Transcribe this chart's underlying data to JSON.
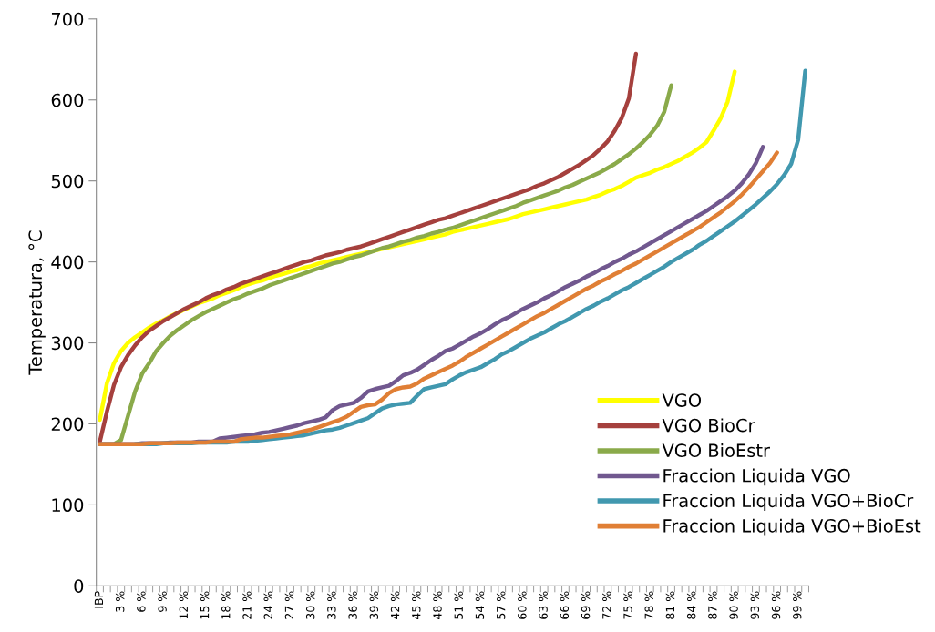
{
  "chart_data": {
    "type": "line",
    "ylabel": "Temperatura, °C",
    "ylim": [
      0,
      700
    ],
    "yticks": [
      0,
      100,
      200,
      300,
      400,
      500,
      600,
      700
    ],
    "grid": false,
    "legend": "bottom right",
    "marker": "none",
    "line_style": "solid",
    "categories": [
      "IBP",
      null,
      null,
      "3 %",
      null,
      null,
      "6 %",
      null,
      null,
      "9 %",
      null,
      null,
      "12 %",
      null,
      null,
      "15 %",
      null,
      null,
      "18 %",
      null,
      null,
      "21 %",
      null,
      null,
      "24 %",
      null,
      null,
      "27 %",
      null,
      null,
      "30 %",
      null,
      null,
      "33 %",
      null,
      null,
      "36 %",
      null,
      null,
      "39 %",
      null,
      null,
      "42 %",
      null,
      null,
      "45 %",
      null,
      null,
      "48 %",
      null,
      null,
      "51 %",
      null,
      null,
      "54 %",
      null,
      null,
      "57 %",
      null,
      null,
      "60 %",
      null,
      null,
      "63 %",
      null,
      null,
      "66 %",
      null,
      null,
      "69 %",
      null,
      null,
      "72 %",
      null,
      null,
      "75 %",
      null,
      null,
      "78 %",
      null,
      null,
      "81 %",
      null,
      null,
      "84 %",
      null,
      null,
      "87 %",
      null,
      null,
      "90 %",
      null,
      null,
      "93 %",
      null,
      null,
      "96 %",
      null,
      null,
      "99 %",
      null
    ],
    "series": [
      {
        "name": "VGO",
        "color": "#ffff00",
        "values": [
          205,
          250,
          275,
          290,
          300,
          307,
          313,
          319,
          324,
          328,
          333,
          337,
          341,
          345,
          349,
          352,
          355,
          359,
          362,
          365,
          369,
          372,
          375,
          377,
          380,
          383,
          385,
          388,
          390,
          393,
          395,
          398,
          400,
          402,
          404,
          406,
          408,
          410,
          412,
          414,
          416,
          418,
          420,
          422,
          424,
          426,
          428,
          430,
          432,
          434,
          437,
          439,
          441,
          443,
          445,
          447,
          449,
          451,
          453,
          456,
          459,
          461,
          463,
          465,
          467,
          469,
          471,
          473,
          475,
          477,
          480,
          483,
          487,
          490,
          494,
          499,
          504,
          507,
          510,
          514,
          517,
          521,
          525,
          530,
          535,
          541,
          548,
          562,
          577,
          598,
          635,
          null,
          null,
          null,
          null,
          null,
          null,
          null,
          null,
          null,
          null
        ]
      },
      {
        "name": "VGO BioCr",
        "color": "#a5403d",
        "values": [
          178,
          215,
          248,
          270,
          285,
          297,
          307,
          315,
          321,
          327,
          332,
          337,
          342,
          346,
          350,
          355,
          359,
          362,
          366,
          369,
          373,
          376,
          379,
          382,
          385,
          388,
          391,
          394,
          397,
          400,
          402,
          405,
          408,
          410,
          412,
          415,
          417,
          419,
          422,
          425,
          428,
          431,
          434,
          437,
          440,
          443,
          446,
          449,
          452,
          454,
          457,
          460,
          463,
          466,
          469,
          472,
          475,
          478,
          481,
          484,
          487,
          490,
          494,
          497,
          501,
          505,
          510,
          515,
          520,
          526,
          532,
          540,
          549,
          562,
          578,
          602,
          657,
          null,
          null,
          null,
          null,
          null,
          null,
          null,
          null,
          null,
          null,
          null,
          null,
          null,
          null,
          null,
          null,
          null,
          null,
          null,
          null,
          null,
          null,
          null,
          null
        ]
      },
      {
        "name": "VGO BioEstr",
        "color": "#8aaa4a",
        "values": [
          175,
          175,
          175,
          180,
          210,
          240,
          262,
          275,
          290,
          300,
          309,
          316,
          322,
          328,
          333,
          338,
          342,
          346,
          350,
          354,
          357,
          361,
          364,
          367,
          371,
          374,
          377,
          380,
          383,
          386,
          389,
          392,
          395,
          398,
          400,
          403,
          406,
          408,
          411,
          414,
          417,
          419,
          422,
          425,
          427,
          430,
          432,
          435,
          437,
          440,
          442,
          445,
          448,
          451,
          454,
          457,
          460,
          463,
          466,
          469,
          473,
          476,
          479,
          482,
          485,
          488,
          492,
          495,
          499,
          503,
          507,
          511,
          516,
          521,
          527,
          533,
          540,
          548,
          557,
          568,
          585,
          618,
          null,
          null,
          null,
          null,
          null,
          null,
          null,
          null,
          null,
          null,
          null,
          null,
          null,
          null,
          null,
          null,
          null,
          null,
          null
        ]
      },
      {
        "name": "Fraccion Liquida VGO",
        "color": "#71588f",
        "values": [
          175,
          175,
          175,
          175,
          175,
          175,
          176,
          176,
          176,
          176,
          177,
          177,
          177,
          177,
          178,
          178,
          178,
          182,
          183,
          184,
          185,
          186,
          187,
          189,
          190,
          192,
          194,
          196,
          198,
          201,
          203,
          205,
          208,
          217,
          222,
          224,
          226,
          232,
          240,
          243,
          245,
          247,
          253,
          260,
          263,
          267,
          273,
          279,
          284,
          290,
          293,
          298,
          303,
          308,
          312,
          317,
          323,
          328,
          332,
          337,
          342,
          346,
          350,
          355,
          359,
          364,
          369,
          373,
          377,
          382,
          386,
          391,
          395,
          400,
          404,
          409,
          413,
          418,
          423,
          428,
          433,
          438,
          443,
          448,
          453,
          458,
          463,
          469,
          475,
          481,
          488,
          497,
          508,
          522,
          542,
          null,
          null,
          null,
          null,
          null,
          null
        ]
      },
      {
        "name": "Fraccion Liquida VGO+BioCr",
        "color": "#4198af",
        "values": [
          null,
          null,
          null,
          null,
          null,
          175,
          175,
          175,
          175,
          176,
          176,
          176,
          176,
          176,
          177,
          177,
          177,
          177,
          177,
          178,
          178,
          178,
          179,
          180,
          181,
          182,
          183,
          184,
          185,
          186,
          188,
          190,
          192,
          193,
          195,
          198,
          201,
          204,
          207,
          213,
          219,
          222,
          224,
          225,
          226,
          235,
          243,
          245,
          247,
          249,
          255,
          260,
          264,
          267,
          270,
          275,
          280,
          286,
          290,
          295,
          300,
          305,
          309,
          313,
          318,
          323,
          327,
          332,
          337,
          342,
          346,
          351,
          355,
          360,
          365,
          369,
          374,
          379,
          384,
          389,
          394,
          400,
          405,
          410,
          415,
          421,
          426,
          432,
          438,
          444,
          450,
          457,
          464,
          471,
          479,
          487,
          496,
          507,
          521,
          551,
          636
        ]
      },
      {
        "name": "Fraccion Liquida VGO+BioEst",
        "color": "#e07f35",
        "values": [
          175,
          175,
          175,
          175,
          175,
          175,
          175,
          176,
          176,
          176,
          176,
          177,
          177,
          177,
          177,
          177,
          178,
          178,
          178,
          178,
          181,
          182,
          183,
          183,
          184,
          185,
          186,
          187,
          189,
          191,
          193,
          196,
          199,
          202,
          205,
          209,
          215,
          221,
          223,
          224,
          230,
          238,
          243,
          245,
          246,
          250,
          256,
          260,
          264,
          268,
          272,
          277,
          283,
          288,
          293,
          298,
          303,
          308,
          313,
          318,
          323,
          328,
          333,
          337,
          342,
          347,
          352,
          357,
          362,
          367,
          371,
          376,
          380,
          385,
          389,
          394,
          398,
          403,
          408,
          413,
          418,
          423,
          428,
          433,
          438,
          443,
          449,
          455,
          461,
          468,
          475,
          483,
          492,
          502,
          512,
          522,
          535,
          null,
          null,
          null,
          null
        ]
      }
    ]
  }
}
